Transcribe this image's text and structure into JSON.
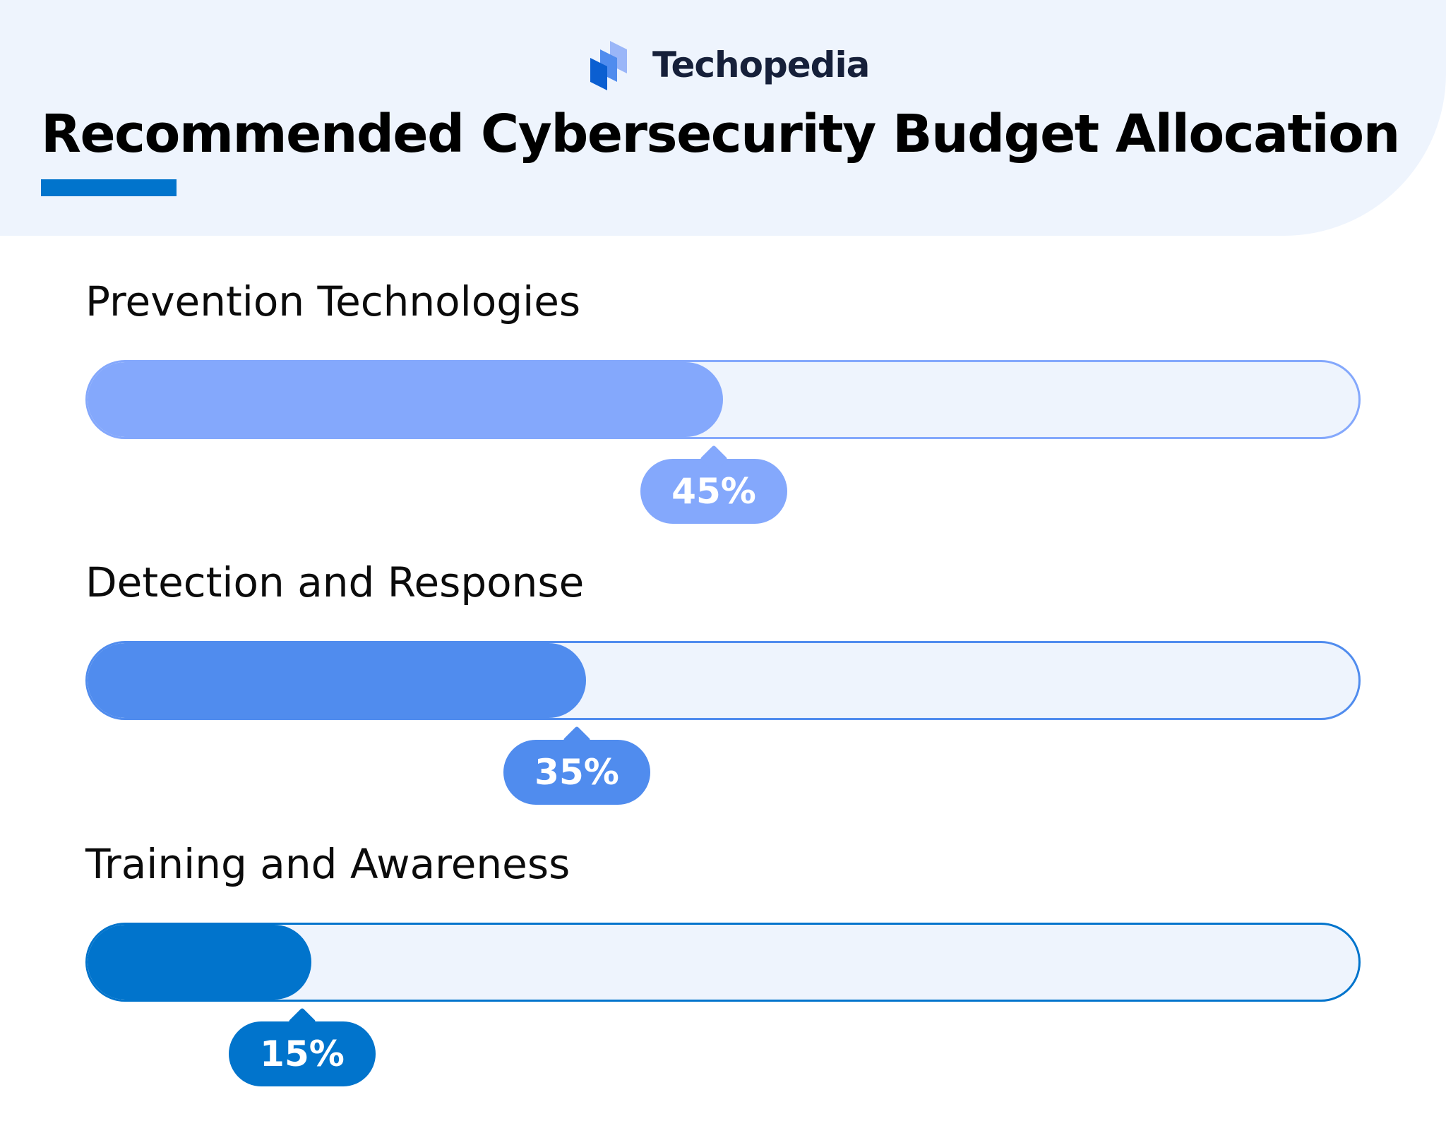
{
  "brand": {
    "name": "Techopedia",
    "logo_icon": "techopedia-logo-icon"
  },
  "chart_data": {
    "type": "bar",
    "orientation": "horizontal",
    "title": "Recommended Cybersecurity Budget Allocation",
    "xlim": [
      0,
      100
    ],
    "unit": "%",
    "categories": [
      "Prevention Technologies",
      "Detection and Response",
      "Training and Awareness"
    ],
    "values": [
      45,
      35,
      15
    ],
    "value_labels": [
      "45%",
      "35%",
      "15%"
    ],
    "colors": [
      "#84a8fc",
      "#508cee",
      "#0174cc"
    ],
    "track_color": "#eef4fd",
    "grid": false,
    "legend": "none"
  }
}
